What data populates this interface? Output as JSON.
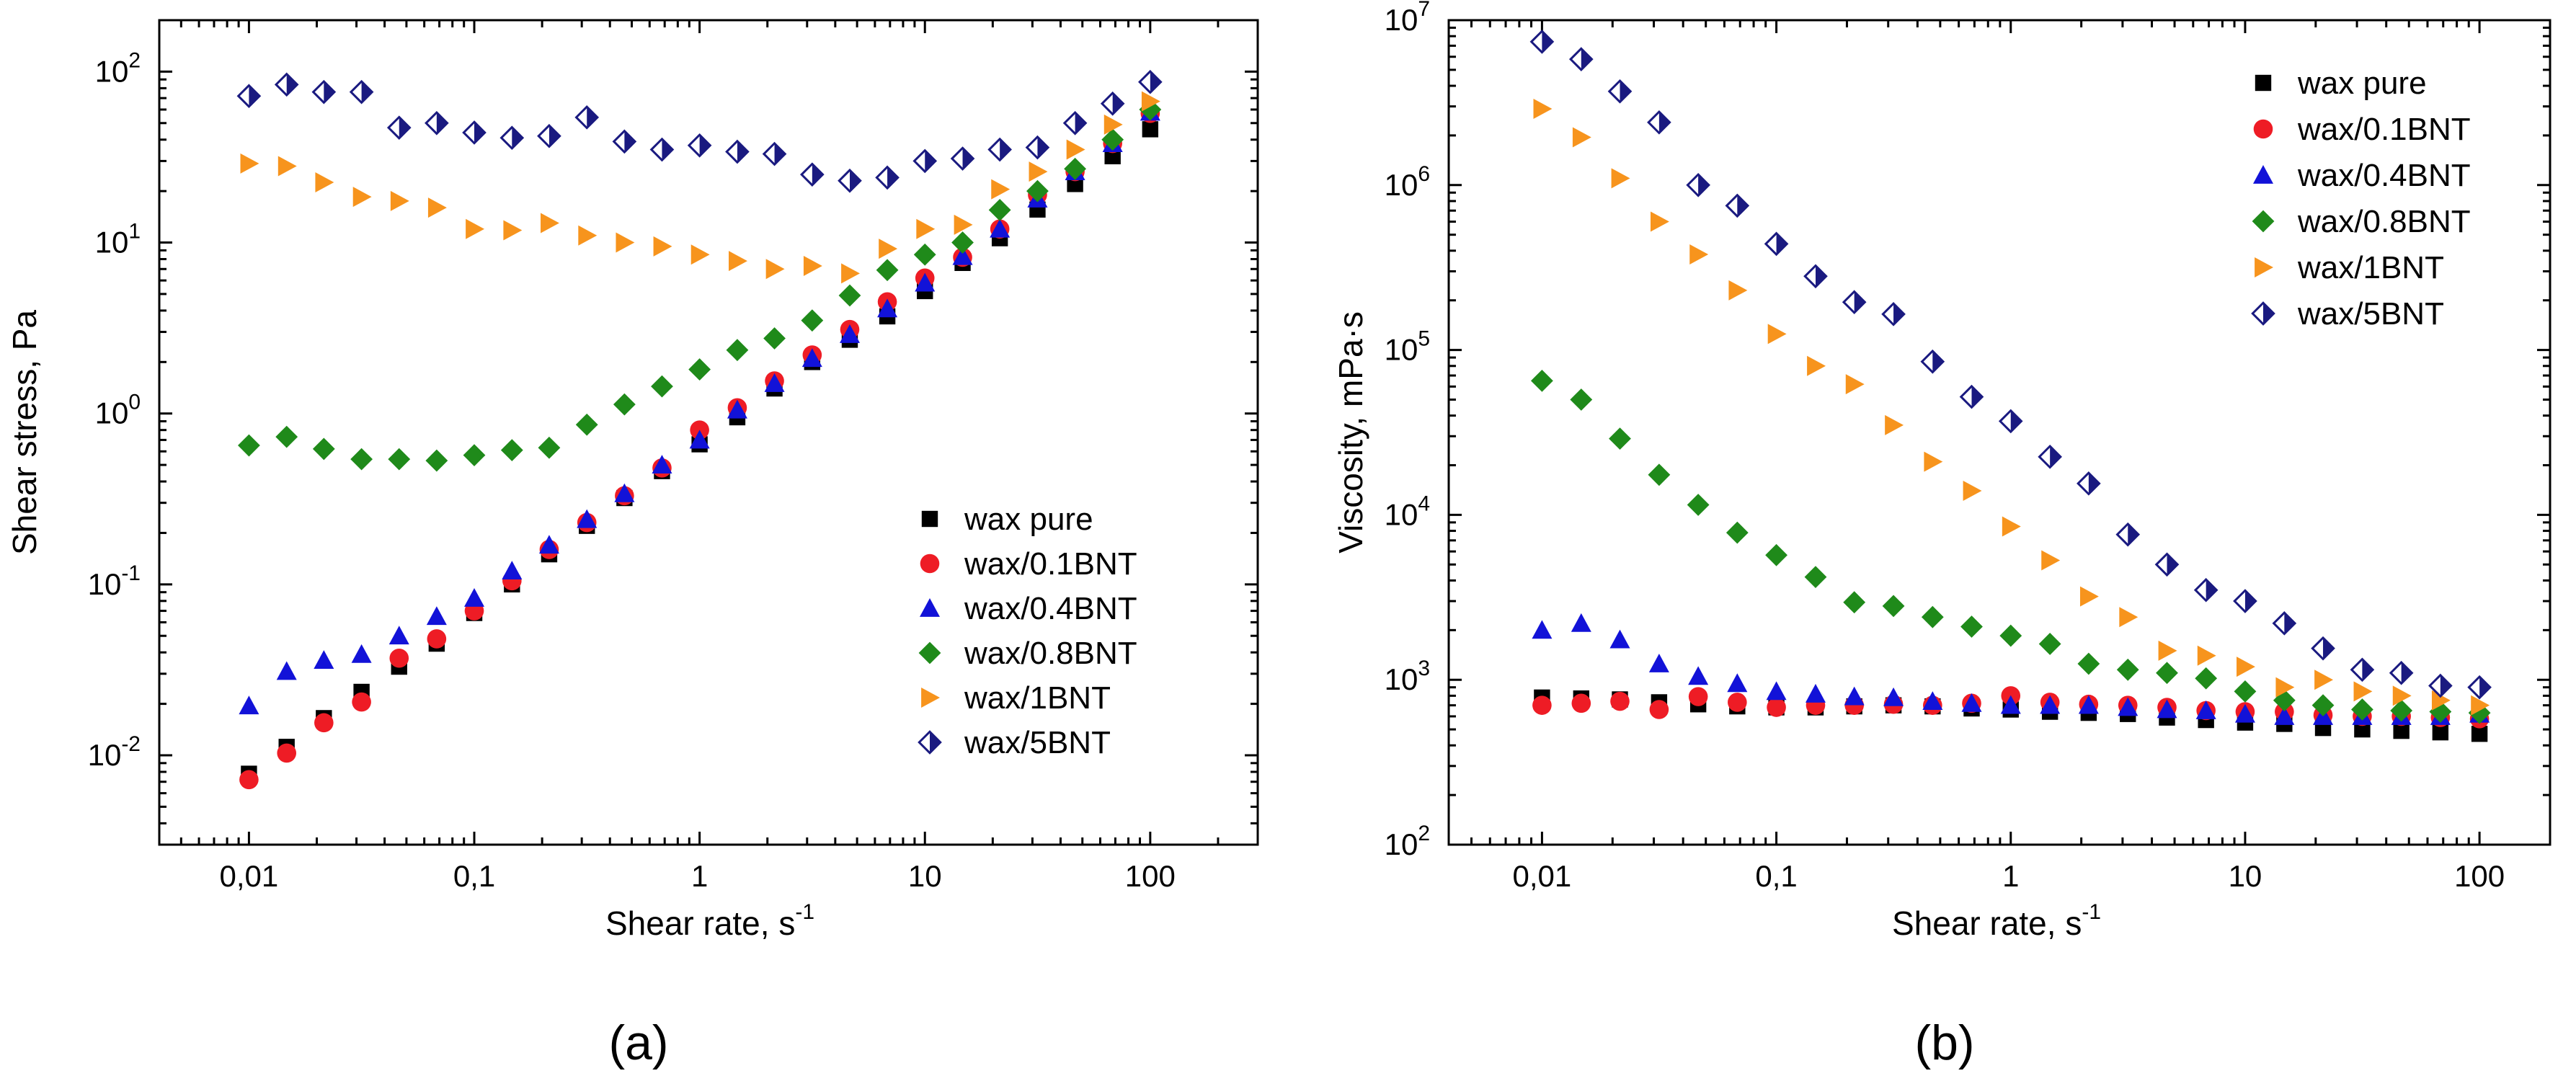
{
  "colors": {
    "wax_pure": "#000000",
    "wax_01BNT": "#ee1c25",
    "wax_04BNT": "#1212d8",
    "wax_08BNT": "#1f8a1a",
    "wax_1BNT": "#f7941d",
    "wax_5BNT": "#1a1a80"
  },
  "markers": {
    "wax_pure": "square",
    "wax_01BNT": "circle",
    "wax_04BNT": "triangle-up",
    "wax_08BNT": "diamond",
    "wax_1BNT": "triangle-right",
    "wax_5BNT": "half-diamond"
  },
  "chart_data": [
    {
      "type": "scatter",
      "panel_label": "(a)",
      "xlabel": "Shear rate, s",
      "xlabel_superscript": "-1",
      "ylabel": "Shear stress, Pa",
      "xscale": "log",
      "yscale": "log",
      "xlim": [
        0.004,
        300
      ],
      "ylim": [
        0.003,
        200
      ],
      "x_ticks": [
        0.01,
        0.1,
        1,
        10,
        100
      ],
      "x_tick_labels": [
        "0,01",
        "0,1",
        "1",
        "10",
        "100"
      ],
      "y_ticks": [
        0.01,
        0.1,
        1,
        10,
        100
      ],
      "y_tick_labels": [
        {
          "base": "10",
          "exp": "-2"
        },
        {
          "base": "10",
          "exp": "-1"
        },
        {
          "base": "10",
          "exp": "0"
        },
        {
          "base": "10",
          "exp": "1"
        },
        {
          "base": "10",
          "exp": "2"
        }
      ],
      "legend_position": "bottom-right",
      "x": [
        0.01,
        0.0147,
        0.0215,
        0.0316,
        0.0464,
        0.0681,
        0.1,
        0.147,
        0.215,
        0.316,
        0.464,
        0.681,
        1,
        1.47,
        2.15,
        3.16,
        4.64,
        6.81,
        10,
        14.7,
        21.5,
        31.6,
        46.4,
        68.1,
        100
      ],
      "series": [
        {
          "name": "wax pure",
          "key": "wax_pure",
          "values": [
            0.0078,
            0.0112,
            0.0165,
            0.0235,
            0.033,
            0.045,
            0.068,
            0.1,
            0.15,
            0.22,
            0.32,
            0.46,
            0.66,
            0.95,
            1.4,
            2.0,
            2.7,
            3.7,
            5.2,
            7.6,
            10.6,
            15.6,
            22,
            32,
            46
          ]
        },
        {
          "name": "wax/0.1BNT",
          "key": "wax_01BNT",
          "values": [
            0.0072,
            0.0103,
            0.0155,
            0.0205,
            0.037,
            0.048,
            0.07,
            0.105,
            0.16,
            0.23,
            0.33,
            0.48,
            0.8,
            1.08,
            1.55,
            2.2,
            3.1,
            4.5,
            6.2,
            8.2,
            12,
            19,
            26,
            38,
            57
          ]
        },
        {
          "name": "wax/0.4BNT",
          "key": "wax_04BNT",
          "values": [
            0.0195,
            0.031,
            0.036,
            0.039,
            0.05,
            0.065,
            0.083,
            0.12,
            0.17,
            0.24,
            0.34,
            0.5,
            0.7,
            1.05,
            1.5,
            2.1,
            2.9,
            4.1,
            5.8,
            8.3,
            12,
            18,
            26,
            38,
            58
          ]
        },
        {
          "name": "wax/0.8BNT",
          "key": "wax_08BNT",
          "values": [
            0.65,
            0.73,
            0.62,
            0.54,
            0.54,
            0.53,
            0.57,
            0.61,
            0.63,
            0.86,
            1.13,
            1.44,
            1.81,
            2.35,
            2.75,
            3.5,
            4.9,
            6.9,
            8.5,
            10,
            15.5,
            20,
            27,
            40,
            60
          ]
        },
        {
          "name": "wax/1BNT",
          "key": "wax_1BNT",
          "values": [
            29,
            28,
            22.5,
            18.5,
            17.5,
            16,
            12,
            11.8,
            13,
            11,
            10,
            9.5,
            8.5,
            7.8,
            7,
            7.3,
            6.6,
            9.2,
            12,
            12.7,
            20.5,
            26,
            35,
            49,
            67
          ]
        },
        {
          "name": "wax/5BNT",
          "key": "wax_5BNT",
          "values": [
            72,
            84,
            76,
            76,
            47,
            50,
            44,
            41,
            42,
            54,
            39,
            35,
            37,
            34,
            33,
            25,
            23,
            24,
            30,
            31,
            35,
            36,
            50,
            65,
            87
          ]
        }
      ]
    },
    {
      "type": "scatter",
      "panel_label": "(b)",
      "xlabel": "Shear rate, s",
      "xlabel_superscript": "-1",
      "ylabel": "Viscosity, mPa·s",
      "xscale": "log",
      "yscale": "log",
      "xlim": [
        0.004,
        200
      ],
      "ylim": [
        100,
        10000000
      ],
      "x_ticks": [
        0.01,
        0.1,
        1,
        10,
        100
      ],
      "x_tick_labels": [
        "0,01",
        "0,1",
        "1",
        "10",
        "100"
      ],
      "y_ticks": [
        100,
        1000,
        10000,
        100000,
        1000000,
        10000000
      ],
      "y_tick_labels": [
        {
          "base": "10",
          "exp": "2"
        },
        {
          "base": "10",
          "exp": "3"
        },
        {
          "base": "10",
          "exp": "4"
        },
        {
          "base": "10",
          "exp": "5"
        },
        {
          "base": "10",
          "exp": "6"
        },
        {
          "base": "10",
          "exp": "7"
        }
      ],
      "legend_position": "top-right",
      "x": [
        0.01,
        0.0147,
        0.0215,
        0.0316,
        0.0464,
        0.0681,
        0.1,
        0.147,
        0.215,
        0.316,
        0.464,
        0.681,
        1,
        1.47,
        2.15,
        3.16,
        4.64,
        6.81,
        10,
        14.7,
        21.5,
        31.6,
        46.4,
        68.1,
        100
      ],
      "series": [
        {
          "name": "wax pure",
          "key": "wax_pure",
          "values": [
            780,
            770,
            760,
            730,
            710,
            690,
            680,
            680,
            690,
            700,
            690,
            670,
            660,
            640,
            630,
            620,
            590,
            570,
            550,
            540,
            510,
            500,
            490,
            480,
            470
          ]
        },
        {
          "name": "wax/0.1BNT",
          "key": "wax_01BNT",
          "values": [
            700,
            720,
            740,
            660,
            790,
            730,
            680,
            700,
            700,
            710,
            700,
            720,
            800,
            730,
            710,
            700,
            680,
            650,
            640,
            640,
            610,
            600,
            600,
            590,
            580
          ]
        },
        {
          "name": "wax/0.4BNT",
          "key": "wax_04BNT",
          "values": [
            2000,
            2200,
            1750,
            1250,
            1050,
            950,
            850,
            820,
            790,
            780,
            740,
            720,
            700,
            700,
            700,
            680,
            660,
            650,
            620,
            600,
            600,
            600,
            600,
            600,
            620
          ]
        },
        {
          "name": "wax/0.8BNT",
          "key": "wax_08BNT",
          "values": [
            65000,
            50000,
            29000,
            17500,
            11500,
            7800,
            5700,
            4200,
            2950,
            2800,
            2400,
            2100,
            1850,
            1650,
            1250,
            1150,
            1100,
            1020,
            850,
            750,
            700,
            660,
            650,
            640,
            630
          ]
        },
        {
          "name": "wax/1BNT",
          "key": "wax_1BNT",
          "values": [
            2900000,
            1950000,
            1100000,
            600000,
            380000,
            230000,
            125000,
            80000,
            62000,
            35000,
            21000,
            14000,
            8500,
            5300,
            3200,
            2400,
            1500,
            1400,
            1200,
            900,
            1000,
            850,
            800,
            750,
            700
          ]
        },
        {
          "name": "wax/5BNT",
          "key": "wax_5BNT",
          "values": [
            7400000,
            5800000,
            3700000,
            2400000,
            1000000,
            750000,
            440000,
            280000,
            195000,
            165000,
            85000,
            52000,
            37000,
            22500,
            15500,
            7600,
            5000,
            3500,
            3000,
            2200,
            1550,
            1150,
            1100,
            920,
            900
          ]
        }
      ]
    }
  ]
}
